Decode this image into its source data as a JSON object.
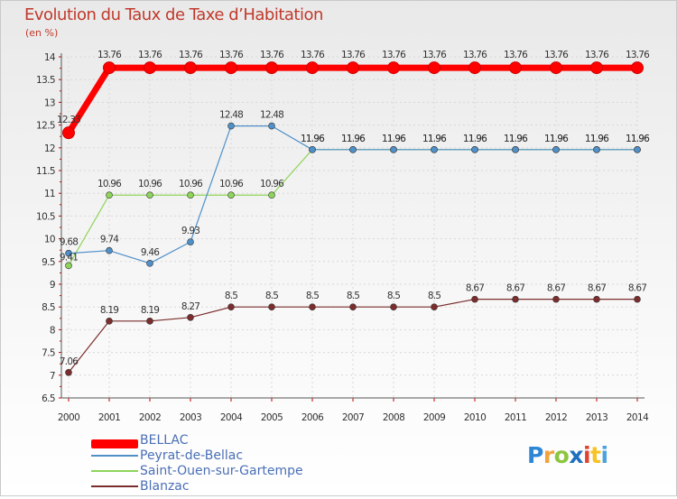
{
  "chart_data": {
    "type": "line",
    "title": "Evolution du Taux de Taxe d'Habitation",
    "subtitle": "(en %)",
    "xlabel": "",
    "ylabel": "",
    "ylim": [
      6.5,
      14
    ],
    "grid": true,
    "y_ticks": [
      "6.5",
      "7",
      "7.5",
      "8",
      "8.5",
      "9",
      "9.5",
      "10",
      "10.5",
      "11",
      "11.5",
      "12",
      "12.5",
      "13",
      "13.5",
      "14"
    ],
    "x": [
      "2000",
      "2001",
      "2002",
      "2003",
      "2004",
      "2005",
      "2006",
      "2007",
      "2008",
      "2009",
      "2010",
      "2011",
      "2012",
      "2013",
      "2014"
    ],
    "series": [
      {
        "name": "BELLAC",
        "color": "#ff0000",
        "values": [
          12.33,
          13.76,
          13.76,
          13.76,
          13.76,
          13.76,
          13.76,
          13.76,
          13.76,
          13.76,
          13.76,
          13.76,
          13.76,
          13.76,
          13.76
        ],
        "labels": [
          "12.33",
          "13.76",
          "13.76",
          "13.76",
          "13.76",
          "13.76",
          "13.76",
          "13.76",
          "13.76",
          "13.76",
          "13.76",
          "13.76",
          "13.76",
          "13.76",
          "13.76"
        ]
      },
      {
        "name": "Peyrat-de-Bellac",
        "color": "#4f90c8",
        "values": [
          9.68,
          9.74,
          9.46,
          9.93,
          12.48,
          12.48,
          11.96,
          11.96,
          11.96,
          11.96,
          11.96,
          11.96,
          11.96,
          11.96,
          11.96
        ],
        "labels": [
          "9.68",
          "9.74",
          "9.46",
          "9.93",
          "12.48",
          "12.48",
          "11.96",
          "11.96",
          "11.96",
          "11.96",
          "11.96",
          "11.96",
          "11.96",
          "11.96",
          "11.96"
        ]
      },
      {
        "name": "Saint-Ouen-sur-Gartempe",
        "color": "#8fd45a",
        "values": [
          9.41,
          10.96,
          10.96,
          10.96,
          10.96,
          10.96,
          11.96,
          11.96,
          11.96,
          11.96,
          11.96,
          11.96,
          11.96,
          11.96,
          11.96
        ],
        "labels": [
          "9.41",
          "10.96",
          "10.96",
          "10.96",
          "10.96",
          "10.96",
          "11.96",
          "11.96",
          "11.96",
          "11.96",
          "11.96",
          "11.96",
          "11.96",
          "11.96",
          "11.96"
        ]
      },
      {
        "name": "Blanzac",
        "color": "#7b2d2d",
        "values": [
          7.06,
          8.19,
          8.19,
          8.27,
          8.5,
          8.5,
          8.5,
          8.5,
          8.5,
          8.5,
          8.67,
          8.67,
          8.67,
          8.67,
          8.67
        ],
        "labels": [
          "7.06",
          "8.19",
          "8.19",
          "8.27",
          "8.5",
          "8.5",
          "8.5",
          "8.5",
          "8.5",
          "8.5",
          "8.67",
          "8.67",
          "8.67",
          "8.67",
          "8.67"
        ]
      }
    ]
  },
  "header": {
    "title": "Evolution du Taux de Taxe d’Habitation",
    "unit": "(en %)"
  },
  "legend": [
    {
      "label": "BELLAC",
      "color": "#ff0000"
    },
    {
      "label": "Peyrat-de-Bellac",
      "color": "#4f90c8"
    },
    {
      "label": "Saint-Ouen-sur-Gartempe",
      "color": "#8fd45a"
    },
    {
      "label": "Blanzac",
      "color": "#7b2d2d"
    }
  ],
  "brand": {
    "letters": [
      "P",
      "r",
      "o",
      "x",
      "i",
      "t",
      "i"
    ],
    "colors": [
      "#2e86d6",
      "#f2a33a",
      "#8cc63f",
      "#1f6fbf",
      "#e0442f",
      "#f7c325",
      "#4aa3df"
    ]
  }
}
